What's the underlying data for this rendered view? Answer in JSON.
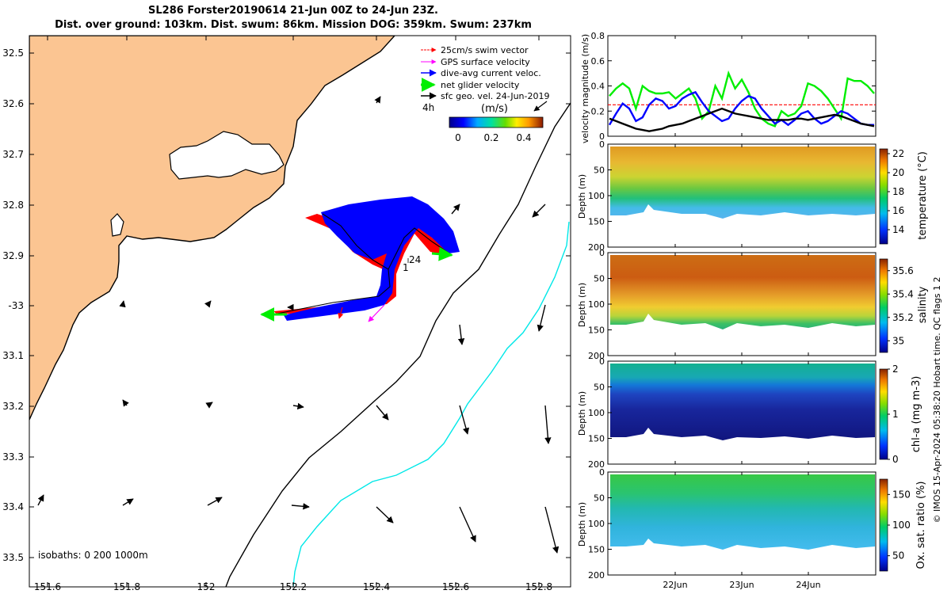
{
  "title_line1": "SL286 Forster20190614 21-Jun 00Z to 24-Jun 23Z.",
  "title_line2": "Dist. over ground: 103km. Dist. swum: 86km. Mission DOG: 359km. Swum: 237km",
  "chart_data": [
    {
      "type": "map",
      "lon_ticks": [
        "151.6",
        "151.8",
        "152",
        "152.2",
        "152.4",
        "152.6",
        "152.8"
      ],
      "lat_ticks": [
        "32.5",
        "32.6",
        "32.7",
        "32.8",
        "32.9",
        "-33",
        "33.1",
        "33.2",
        "33.3",
        "33.4",
        "33.5"
      ],
      "xlim": [
        151.58,
        152.86
      ],
      "ylim": [
        -33.53,
        -32.46
      ],
      "legend": {
        "placement": "top-right",
        "items": [
          {
            "label": "25cm/s swim vector",
            "color": "#ff0000"
          },
          {
            "label": "GPS surface velocity",
            "color": "#ff00ff"
          },
          {
            "label": "dive-avg current veloc.",
            "color": "#0000ff"
          },
          {
            "label": "net glider velocity",
            "color": "#00ee00"
          },
          {
            "label": "sfc geo. vel. 24-Jun-2019",
            "color": "#000000"
          }
        ],
        "arrow_scale_label": "4h"
      },
      "colorbar": {
        "label": "(m/s)",
        "ticks": [
          "0",
          "0.2",
          "0.4"
        ],
        "range": [
          0,
          0.5
        ]
      },
      "isobath_label": "isobaths: 0   200  1000m",
      "track_labels": [
        "24",
        "1"
      ]
    },
    {
      "type": "line",
      "ylabel": "velocity magnitude (m/s)",
      "ylim": [
        0,
        0.8
      ],
      "yticks": [
        "0",
        "0.2",
        "0.4",
        "0.6",
        "0.8"
      ],
      "reference_value": 0.25,
      "series": [
        {
          "color": "#00ee00",
          "values": [
            0.32,
            0.38,
            0.42,
            0.38,
            0.22,
            0.4,
            0.36,
            0.34,
            0.34,
            0.35,
            0.3,
            0.34,
            0.38,
            0.3,
            0.14,
            0.2,
            0.4,
            0.3,
            0.5,
            0.38,
            0.45,
            0.35,
            0.22,
            0.14,
            0.1,
            0.08,
            0.2,
            0.16,
            0.18,
            0.24,
            0.42,
            0.4,
            0.36,
            0.3,
            0.22,
            0.14,
            0.46,
            0.44,
            0.44,
            0.4,
            0.34
          ]
        },
        {
          "color": "#0000ff",
          "values": [
            0.09,
            0.18,
            0.26,
            0.22,
            0.12,
            0.15,
            0.25,
            0.3,
            0.28,
            0.22,
            0.24,
            0.3,
            0.33,
            0.35,
            0.27,
            0.2,
            0.16,
            0.12,
            0.14,
            0.22,
            0.28,
            0.32,
            0.3,
            0.22,
            0.16,
            0.1,
            0.13,
            0.09,
            0.13,
            0.18,
            0.2,
            0.14,
            0.1,
            0.12,
            0.16,
            0.2,
            0.18,
            0.14,
            0.1,
            0.09,
            0.09
          ]
        },
        {
          "color": "#000000",
          "values": [
            0.14,
            0.12,
            0.1,
            0.08,
            0.06,
            0.05,
            0.04,
            0.05,
            0.06,
            0.08,
            0.09,
            0.1,
            0.12,
            0.14,
            0.16,
            0.18,
            0.2,
            0.22,
            0.2,
            0.18,
            0.17,
            0.16,
            0.15,
            0.14,
            0.13,
            0.13,
            0.13,
            0.13,
            0.14,
            0.14,
            0.13,
            0.14,
            0.15,
            0.16,
            0.17,
            0.16,
            0.14,
            0.12,
            0.1,
            0.09,
            0.08
          ]
        }
      ]
    },
    {
      "type": "heatmap",
      "ylabel": "Depth (m)",
      "ylim": [
        200,
        0
      ],
      "yticks": [
        "0",
        "50",
        "100",
        "150",
        "200"
      ],
      "colorbar": {
        "label": "temperature (°C)",
        "ticks": [
          "14",
          "16",
          "18",
          "20",
          "22"
        ],
        "range": [
          12.5,
          22.5
        ]
      }
    },
    {
      "type": "heatmap",
      "ylabel": "Depth (m)",
      "ylim": [
        200,
        0
      ],
      "yticks": [
        "0",
        "50",
        "100",
        "150",
        "200"
      ],
      "colorbar": {
        "label": "salinity",
        "ticks": [
          "35",
          "35.2",
          "35.4",
          "35.6"
        ],
        "range": [
          34.9,
          35.7
        ]
      }
    },
    {
      "type": "heatmap",
      "ylabel": "Depth (m)",
      "ylim": [
        200,
        0
      ],
      "yticks": [
        "0",
        "50",
        "100",
        "150",
        "200"
      ],
      "colorbar": {
        "label": "chl-a (mg m-3)",
        "ticks": [
          "0",
          "1",
          "2"
        ],
        "range": [
          0,
          2
        ]
      }
    },
    {
      "type": "heatmap",
      "ylabel": "Depth (m)",
      "ylim": [
        200,
        0
      ],
      "yticks": [
        "0",
        "50",
        "100",
        "150",
        "200"
      ],
      "xticks": [
        "22Jun",
        "23Jun",
        "24Jun"
      ],
      "colorbar": {
        "label": "Ox. sat. ratio (%)",
        "ticks": [
          "50",
          "100",
          "150"
        ],
        "range": [
          25,
          175
        ]
      }
    }
  ],
  "side_note": "© IMOS 15-Apr-2024 05:38:20 Hobart time. QC flags 1  2"
}
